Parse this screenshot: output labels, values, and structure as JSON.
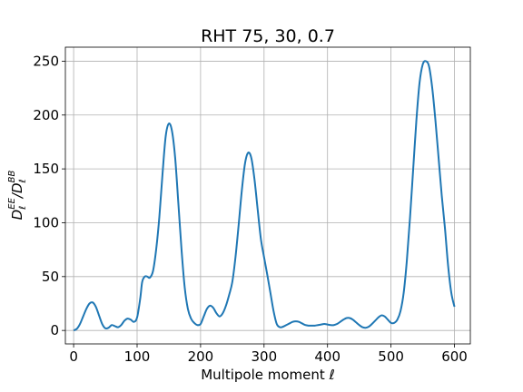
{
  "chart_data": {
    "type": "line",
    "title": "RHT 75, 30, 0.7",
    "xlabel": "Multipole moment ℓ",
    "ylabel_main": "D",
    "ylabel_sub1": "ℓ",
    "ylabel_sup1": "EE",
    "ylabel_sep": "/D",
    "ylabel_sub2": "ℓ",
    "ylabel_sup2": "BB",
    "xlim": [
      -13,
      625
    ],
    "ylim": [
      -12.5,
      263
    ],
    "xticks": [
      0,
      100,
      200,
      300,
      400,
      500,
      600
    ],
    "yticks": [
      0,
      50,
      100,
      150,
      200,
      250
    ],
    "grid": true,
    "line_color": "#1f77b4",
    "series": [
      {
        "x": [
          0,
          5,
          10,
          15,
          20,
          25,
          30,
          35,
          40,
          45,
          50,
          55,
          60,
          65,
          70,
          75,
          80,
          85,
          90,
          95,
          100,
          105,
          108,
          112,
          116,
          120,
          125,
          130,
          135,
          140,
          145,
          150,
          155,
          160,
          165,
          170,
          175,
          180,
          185,
          190,
          195,
          200,
          205,
          210,
          215,
          220,
          225,
          230,
          235,
          240,
          245,
          250,
          255,
          260,
          265,
          270,
          275,
          280,
          285,
          290,
          295,
          300,
          305,
          310,
          315,
          320,
          325,
          330,
          335,
          340,
          345,
          350,
          355,
          360,
          365,
          370,
          375,
          380,
          385,
          390,
          395,
          400,
          405,
          410,
          415,
          420,
          425,
          430,
          435,
          440,
          445,
          450,
          455,
          460,
          465,
          470,
          475,
          480,
          485,
          490,
          495,
          500,
          505,
          510,
          515,
          520,
          525,
          530,
          535,
          540,
          545,
          550,
          555,
          560,
          565,
          570,
          575,
          580,
          585,
          590,
          595,
          600
        ],
        "y": [
          0,
          1.5,
          6,
          13,
          20,
          25,
          26,
          22,
          14,
          6,
          2,
          2.5,
          5,
          4,
          3,
          5,
          9,
          11,
          10,
          8,
          12,
          30,
          45,
          50,
          50,
          49,
          55,
          75,
          105,
          145,
          180,
          192,
          185,
          160,
          118,
          75,
          40,
          20,
          11,
          7,
          5,
          6,
          13,
          20,
          23,
          21,
          16,
          13,
          16,
          23,
          33,
          45,
          68,
          98,
          130,
          155,
          165,
          160,
          140,
          112,
          85,
          68,
          52,
          35,
          18,
          6,
          3,
          3.5,
          5,
          6.5,
          8,
          8.5,
          8,
          6.5,
          5,
          4.5,
          4.5,
          4.5,
          5,
          5.5,
          6,
          5.5,
          5,
          5,
          6,
          8,
          10,
          11.5,
          11.5,
          10,
          7.5,
          5,
          3,
          2.5,
          3.5,
          6,
          9,
          12,
          14,
          13,
          10,
          7,
          7,
          10,
          18,
          35,
          65,
          105,
          150,
          195,
          230,
          247,
          250,
          245,
          225,
          195,
          160,
          125,
          95,
          60,
          35,
          22
        ]
      }
    ]
  }
}
